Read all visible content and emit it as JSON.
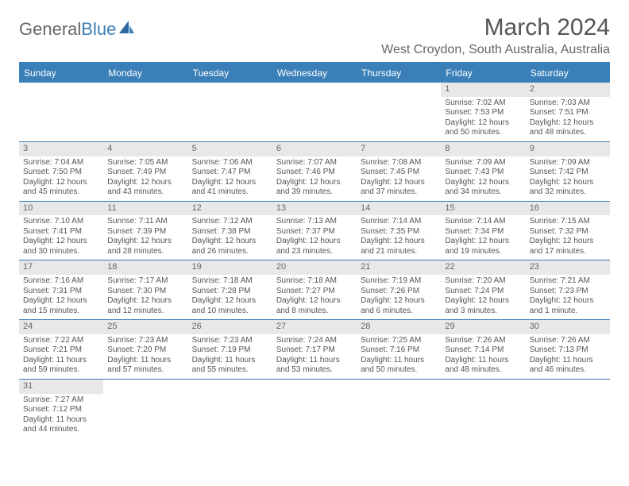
{
  "logo": {
    "general": "General",
    "blue": "Blue"
  },
  "title": "March 2024",
  "location": "West Croydon, South Australia, Australia",
  "colors": {
    "accent": "#3a7fb8",
    "header_bg": "#3a7fb8",
    "header_text": "#ffffff",
    "daynum_bg": "#e8e8e8",
    "text": "#555555",
    "border": "#3a7fb8",
    "page_bg": "#ffffff"
  },
  "typography": {
    "title_fontsize": 30,
    "location_fontsize": 16,
    "dayheader_fontsize": 12,
    "daynum_fontsize": 11,
    "body_fontsize": 10
  },
  "day_headers": [
    "Sunday",
    "Monday",
    "Tuesday",
    "Wednesday",
    "Thursday",
    "Friday",
    "Saturday"
  ],
  "weeks": [
    [
      {
        "empty": true
      },
      {
        "empty": true
      },
      {
        "empty": true
      },
      {
        "empty": true
      },
      {
        "empty": true
      },
      {
        "num": "1",
        "sunrise": "Sunrise: 7:02 AM",
        "sunset": "Sunset: 7:53 PM",
        "daylight": "Daylight: 12 hours and 50 minutes."
      },
      {
        "num": "2",
        "sunrise": "Sunrise: 7:03 AM",
        "sunset": "Sunset: 7:51 PM",
        "daylight": "Daylight: 12 hours and 48 minutes."
      }
    ],
    [
      {
        "num": "3",
        "sunrise": "Sunrise: 7:04 AM",
        "sunset": "Sunset: 7:50 PM",
        "daylight": "Daylight: 12 hours and 45 minutes."
      },
      {
        "num": "4",
        "sunrise": "Sunrise: 7:05 AM",
        "sunset": "Sunset: 7:49 PM",
        "daylight": "Daylight: 12 hours and 43 minutes."
      },
      {
        "num": "5",
        "sunrise": "Sunrise: 7:06 AM",
        "sunset": "Sunset: 7:47 PM",
        "daylight": "Daylight: 12 hours and 41 minutes."
      },
      {
        "num": "6",
        "sunrise": "Sunrise: 7:07 AM",
        "sunset": "Sunset: 7:46 PM",
        "daylight": "Daylight: 12 hours and 39 minutes."
      },
      {
        "num": "7",
        "sunrise": "Sunrise: 7:08 AM",
        "sunset": "Sunset: 7:45 PM",
        "daylight": "Daylight: 12 hours and 37 minutes."
      },
      {
        "num": "8",
        "sunrise": "Sunrise: 7:09 AM",
        "sunset": "Sunset: 7:43 PM",
        "daylight": "Daylight: 12 hours and 34 minutes."
      },
      {
        "num": "9",
        "sunrise": "Sunrise: 7:09 AM",
        "sunset": "Sunset: 7:42 PM",
        "daylight": "Daylight: 12 hours and 32 minutes."
      }
    ],
    [
      {
        "num": "10",
        "sunrise": "Sunrise: 7:10 AM",
        "sunset": "Sunset: 7:41 PM",
        "daylight": "Daylight: 12 hours and 30 minutes."
      },
      {
        "num": "11",
        "sunrise": "Sunrise: 7:11 AM",
        "sunset": "Sunset: 7:39 PM",
        "daylight": "Daylight: 12 hours and 28 minutes."
      },
      {
        "num": "12",
        "sunrise": "Sunrise: 7:12 AM",
        "sunset": "Sunset: 7:38 PM",
        "daylight": "Daylight: 12 hours and 26 minutes."
      },
      {
        "num": "13",
        "sunrise": "Sunrise: 7:13 AM",
        "sunset": "Sunset: 7:37 PM",
        "daylight": "Daylight: 12 hours and 23 minutes."
      },
      {
        "num": "14",
        "sunrise": "Sunrise: 7:14 AM",
        "sunset": "Sunset: 7:35 PM",
        "daylight": "Daylight: 12 hours and 21 minutes."
      },
      {
        "num": "15",
        "sunrise": "Sunrise: 7:14 AM",
        "sunset": "Sunset: 7:34 PM",
        "daylight": "Daylight: 12 hours and 19 minutes."
      },
      {
        "num": "16",
        "sunrise": "Sunrise: 7:15 AM",
        "sunset": "Sunset: 7:32 PM",
        "daylight": "Daylight: 12 hours and 17 minutes."
      }
    ],
    [
      {
        "num": "17",
        "sunrise": "Sunrise: 7:16 AM",
        "sunset": "Sunset: 7:31 PM",
        "daylight": "Daylight: 12 hours and 15 minutes."
      },
      {
        "num": "18",
        "sunrise": "Sunrise: 7:17 AM",
        "sunset": "Sunset: 7:30 PM",
        "daylight": "Daylight: 12 hours and 12 minutes."
      },
      {
        "num": "19",
        "sunrise": "Sunrise: 7:18 AM",
        "sunset": "Sunset: 7:28 PM",
        "daylight": "Daylight: 12 hours and 10 minutes."
      },
      {
        "num": "20",
        "sunrise": "Sunrise: 7:18 AM",
        "sunset": "Sunset: 7:27 PM",
        "daylight": "Daylight: 12 hours and 8 minutes."
      },
      {
        "num": "21",
        "sunrise": "Sunrise: 7:19 AM",
        "sunset": "Sunset: 7:26 PM",
        "daylight": "Daylight: 12 hours and 6 minutes."
      },
      {
        "num": "22",
        "sunrise": "Sunrise: 7:20 AM",
        "sunset": "Sunset: 7:24 PM",
        "daylight": "Daylight: 12 hours and 3 minutes."
      },
      {
        "num": "23",
        "sunrise": "Sunrise: 7:21 AM",
        "sunset": "Sunset: 7:23 PM",
        "daylight": "Daylight: 12 hours and 1 minute."
      }
    ],
    [
      {
        "num": "24",
        "sunrise": "Sunrise: 7:22 AM",
        "sunset": "Sunset: 7:21 PM",
        "daylight": "Daylight: 11 hours and 59 minutes."
      },
      {
        "num": "25",
        "sunrise": "Sunrise: 7:23 AM",
        "sunset": "Sunset: 7:20 PM",
        "daylight": "Daylight: 11 hours and 57 minutes."
      },
      {
        "num": "26",
        "sunrise": "Sunrise: 7:23 AM",
        "sunset": "Sunset: 7:19 PM",
        "daylight": "Daylight: 11 hours and 55 minutes."
      },
      {
        "num": "27",
        "sunrise": "Sunrise: 7:24 AM",
        "sunset": "Sunset: 7:17 PM",
        "daylight": "Daylight: 11 hours and 53 minutes."
      },
      {
        "num": "28",
        "sunrise": "Sunrise: 7:25 AM",
        "sunset": "Sunset: 7:16 PM",
        "daylight": "Daylight: 11 hours and 50 minutes."
      },
      {
        "num": "29",
        "sunrise": "Sunrise: 7:26 AM",
        "sunset": "Sunset: 7:14 PM",
        "daylight": "Daylight: 11 hours and 48 minutes."
      },
      {
        "num": "30",
        "sunrise": "Sunrise: 7:26 AM",
        "sunset": "Sunset: 7:13 PM",
        "daylight": "Daylight: 11 hours and 46 minutes."
      }
    ],
    [
      {
        "num": "31",
        "sunrise": "Sunrise: 7:27 AM",
        "sunset": "Sunset: 7:12 PM",
        "daylight": "Daylight: 11 hours and 44 minutes."
      },
      {
        "empty": true
      },
      {
        "empty": true
      },
      {
        "empty": true
      },
      {
        "empty": true
      },
      {
        "empty": true
      },
      {
        "empty": true
      }
    ]
  ]
}
